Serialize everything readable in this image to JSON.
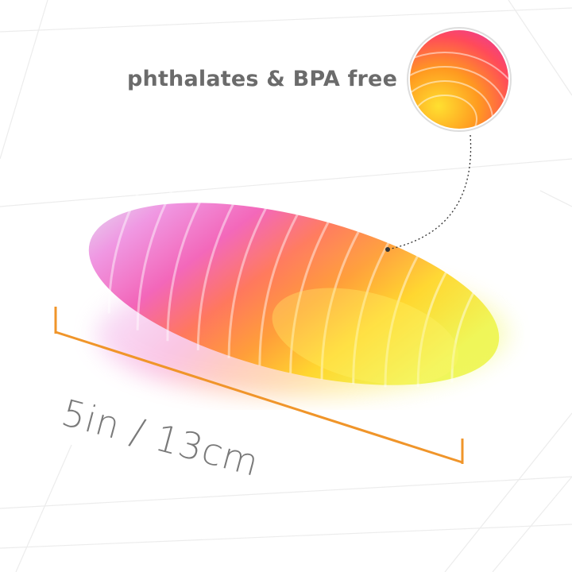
{
  "callout": {
    "text": "phthalates & BPA free"
  },
  "dimension": {
    "text": "5in / 13cm"
  },
  "colors": {
    "dimension_line": "#f0952a",
    "text": "#6b6b6b",
    "gradient": [
      "#cfe3ef",
      "#e45bd1",
      "#ff6a6a",
      "#ff8a2a",
      "#ffd21f",
      "#f3f53b"
    ]
  }
}
